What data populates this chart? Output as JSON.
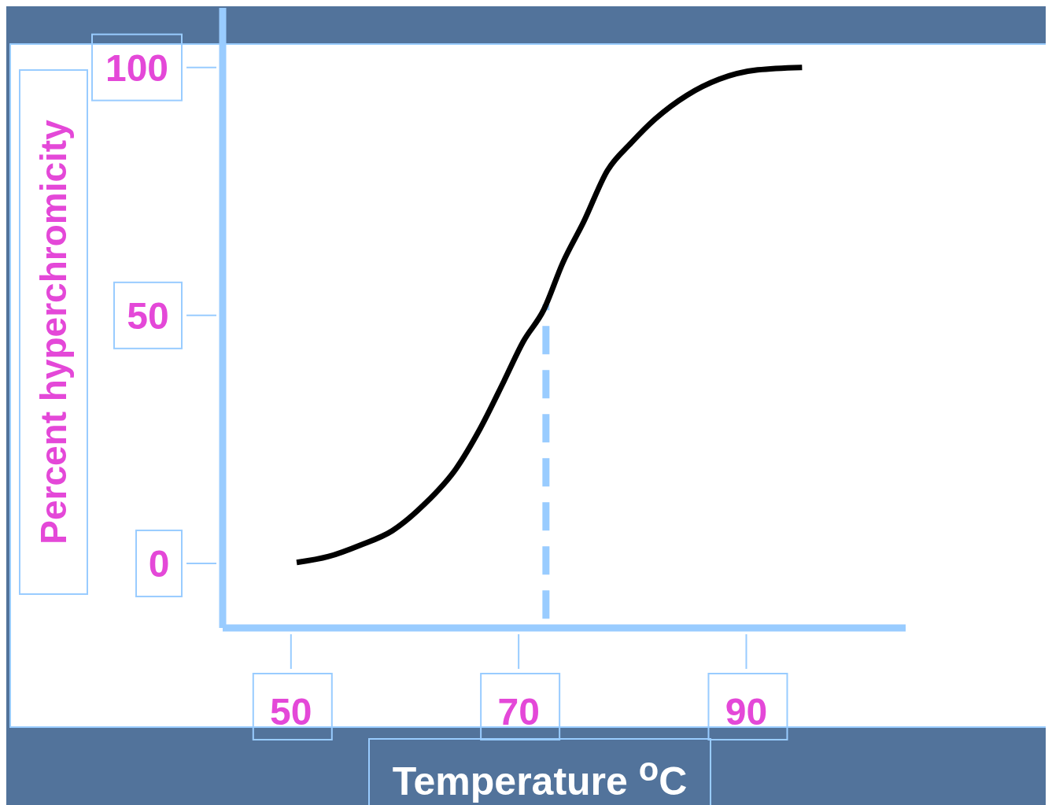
{
  "chart_data": {
    "type": "line",
    "xlabel": "Temperature $^{o}$C",
    "ylabel": "Percent hyperchromicity",
    "x": [
      50.5,
      53.3,
      56.1,
      58.9,
      61.7,
      64.5,
      66.6,
      68.7,
      70.4,
      72.2,
      73.9,
      75.7,
      77.8,
      79.9,
      82.0,
      84.8,
      87.6,
      91.0,
      94.9
    ],
    "series": [
      {
        "color": "#000000",
        "values": [
          0.2,
          1.4,
          3.7,
          6.6,
          11.9,
          19.1,
          27.1,
          36.7,
          44.7,
          51.1,
          60.7,
          68.8,
          79.2,
          84.8,
          89.6,
          94.4,
          97.6,
          99.5,
          100
        ]
      }
    ],
    "xlim": [
      44,
      104
    ],
    "xticks": [
      50,
      70,
      90
    ],
    "ylim": [
      -13,
      112
    ],
    "yticks": [
      0,
      50,
      100
    ],
    "ref_lines": [
      {
        "axis": "x",
        "value": 72.4,
        "color": "#99ccff",
        "line_style": "dashed"
      }
    ],
    "marker": "none",
    "line_style": "solid"
  }
}
